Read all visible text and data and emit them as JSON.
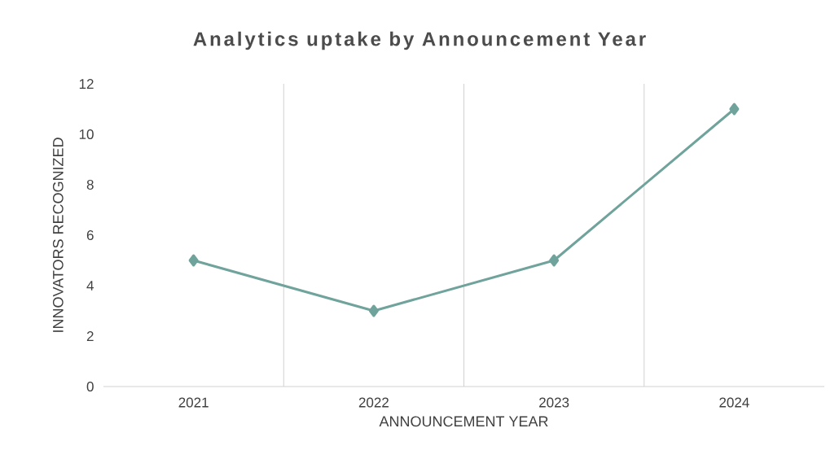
{
  "chart_data": {
    "type": "line",
    "title": "Analytics uptake by Announcement Year",
    "xlabel": "ANNOUNCEMENT YEAR",
    "ylabel": "INNOVATORS RECOGNIZED",
    "categories": [
      "2021",
      "2022",
      "2023",
      "2024"
    ],
    "series": [
      {
        "color": "#6fa39b",
        "values": [
          5,
          3,
          5,
          11
        ]
      }
    ],
    "ylim": [
      0,
      12
    ],
    "yticks": [
      0,
      2,
      4,
      6,
      8,
      10,
      12
    ],
    "grid": "x",
    "marker": "diamond",
    "line_style": "solid"
  }
}
